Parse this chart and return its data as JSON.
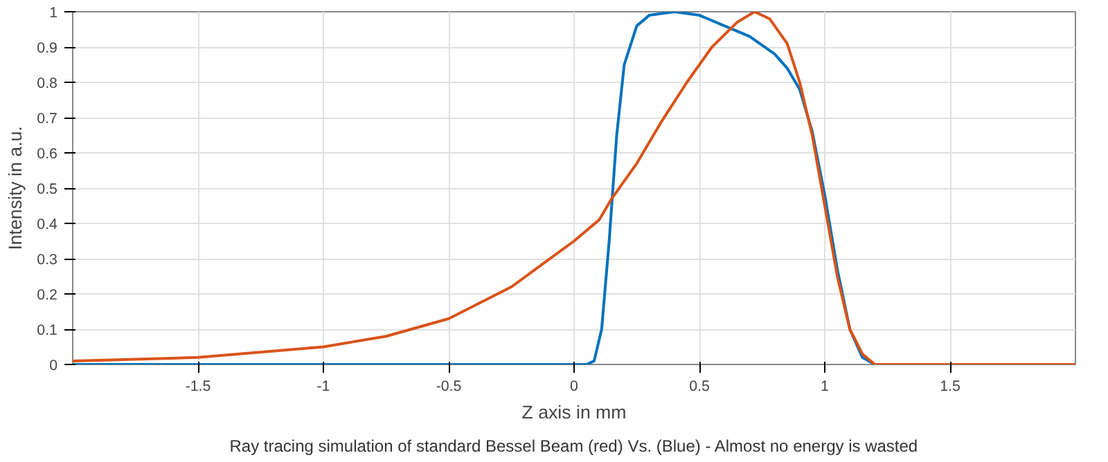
{
  "chart_data": {
    "type": "line",
    "xlabel": "Z axis in mm",
    "ylabel": "Intensity in a.u.",
    "xlim": [
      -2,
      2
    ],
    "ylim": [
      0,
      1
    ],
    "xticks": [
      -1.5,
      -1,
      -0.5,
      0,
      0.5,
      1,
      1.5
    ],
    "yticks": [
      0,
      0.1,
      0.2,
      0.3,
      0.4,
      0.5,
      0.6,
      0.7,
      0.8,
      0.9,
      1
    ],
    "grid": true,
    "line_style": "solid",
    "series": [
      {
        "color": "#0072bd",
        "x": [
          -2,
          0.05,
          0.08,
          0.11,
          0.14,
          0.17,
          0.2,
          0.25,
          0.3,
          0.4,
          0.5,
          0.6,
          0.7,
          0.8,
          0.85,
          0.9,
          0.95,
          1.0,
          1.05,
          1.1,
          1.15,
          1.2,
          2
        ],
        "values": [
          0,
          0,
          0.01,
          0.1,
          0.35,
          0.65,
          0.85,
          0.96,
          0.99,
          1.0,
          0.99,
          0.96,
          0.93,
          0.88,
          0.84,
          0.78,
          0.66,
          0.48,
          0.27,
          0.1,
          0.02,
          0,
          0
        ]
      },
      {
        "color": "#d95319",
        "x": [
          -2,
          -1.5,
          -1,
          -0.75,
          -0.5,
          -0.25,
          0,
          0.1,
          0.15,
          0.25,
          0.35,
          0.45,
          0.55,
          0.65,
          0.72,
          0.78,
          0.85,
          0.9,
          0.95,
          1.0,
          1.05,
          1.1,
          1.15,
          1.2,
          2
        ],
        "values": [
          0.01,
          0.02,
          0.05,
          0.08,
          0.13,
          0.22,
          0.35,
          0.41,
          0.47,
          0.57,
          0.69,
          0.8,
          0.9,
          0.97,
          1.0,
          0.98,
          0.91,
          0.8,
          0.65,
          0.45,
          0.25,
          0.1,
          0.03,
          0,
          0
        ]
      }
    ],
    "annotations": [
      "Ray tracing simulation of standard Bessel Beam (red) Vs. (Blue) - Almost no energy is wasted"
    ]
  }
}
